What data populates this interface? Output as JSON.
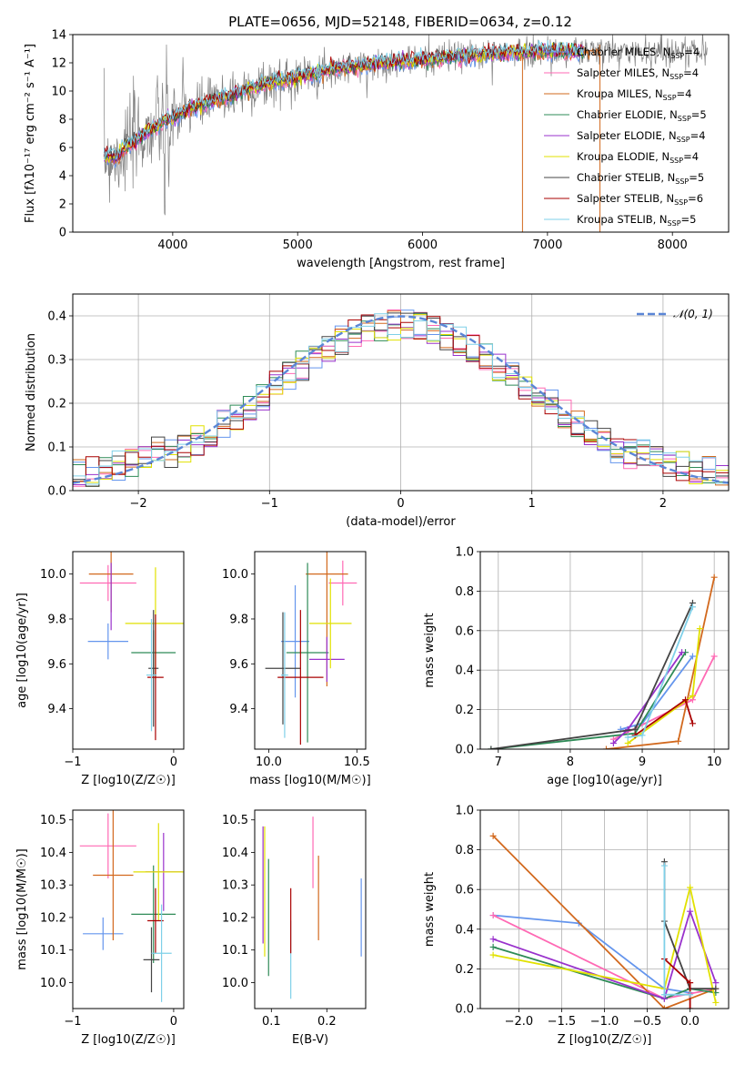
{
  "figure": {
    "title": "PLATE=0656, MJD=52148, FIBERID=0634, z=0.12"
  },
  "legend_labels": [
    "Chabrier MILES, N",
    "Salpeter MILES, N",
    "Kroupa MILES, N",
    "Chabrier ELODIE, N",
    "Salpeter ELODIE, N",
    "Kroupa ELODIE, N",
    "Chabrier STELIB, N",
    "Salpeter STELIB, N",
    "Kroupa STELIB, N"
  ],
  "chart_data": [
    {
      "id": "spectrum",
      "type": "line",
      "xlabel": "wavelength [Angstrom, rest frame]",
      "ylabel": "Flux [fλ10⁻¹⁷ erg cm⁻² s⁻¹ A⁻¹]",
      "xlim": [
        3200,
        8450
      ],
      "ylim": [
        0,
        14
      ],
      "xticks": [
        4000,
        5000,
        6000,
        7000,
        8000
      ],
      "yticks": [
        0,
        2,
        4,
        6,
        8,
        10,
        12,
        14
      ],
      "legend_position": "right",
      "series": [
        {
          "name": "Chabrier MILES",
          "nssp": 4,
          "color": "#6495ed"
        },
        {
          "name": "Salpeter MILES",
          "nssp": 4,
          "color": "#ff69b4"
        },
        {
          "name": "Kroupa MILES",
          "nssp": 4,
          "color": "#d2691e"
        },
        {
          "name": "Chabrier ELODIE",
          "nssp": 5,
          "color": "#2e8b57"
        },
        {
          "name": "Salpeter ELODIE",
          "nssp": 4,
          "color": "#9932cc"
        },
        {
          "name": "Kroupa ELODIE",
          "nssp": 4,
          "color": "#e1e100"
        },
        {
          "name": "Chabrier STELIB",
          "nssp": 5,
          "color": "#444444"
        },
        {
          "name": "Salpeter STELIB",
          "nssp": 6,
          "color": "#aa0000"
        },
        {
          "name": "Kroupa STELIB",
          "nssp": 5,
          "color": "#7fd0e8"
        }
      ],
      "data_color": "#808080",
      "model_points": [
        [
          3450,
          5.4
        ],
        [
          3550,
          5.3
        ],
        [
          3650,
          6.2
        ],
        [
          3750,
          6.8
        ],
        [
          3850,
          7.4
        ],
        [
          3950,
          8.0
        ],
        [
          4050,
          8.3
        ],
        [
          4150,
          8.8
        ],
        [
          4250,
          9.0
        ],
        [
          4350,
          9.4
        ],
        [
          4500,
          9.8
        ],
        [
          4700,
          10.4
        ],
        [
          4900,
          10.8
        ],
        [
          5100,
          11.2
        ],
        [
          5300,
          11.6
        ],
        [
          5500,
          11.8
        ],
        [
          5700,
          12.0
        ],
        [
          5900,
          12.1
        ],
        [
          6100,
          12.3
        ],
        [
          6300,
          12.5
        ],
        [
          6500,
          12.6
        ],
        [
          6700,
          12.7
        ],
        [
          6900,
          12.8
        ],
        [
          7100,
          12.8
        ],
        [
          7300,
          12.8
        ],
        [
          7400,
          12.8
        ]
      ]
    },
    {
      "id": "residuals",
      "type": "histogram",
      "xlabel": "(data-model)/error",
      "ylabel": "Normed distribution",
      "xlim": [
        -2.5,
        2.5
      ],
      "ylim": [
        0,
        0.45
      ],
      "xticks": [
        -2,
        -1,
        0,
        1,
        2
      ],
      "yticks": [
        0.0,
        0.1,
        0.2,
        0.3,
        0.4
      ],
      "grid": true,
      "bins": 50,
      "reference": {
        "label": "𝒩(0, 1)",
        "mean": 0,
        "sigma": 1,
        "color": "#5b86d6"
      },
      "legend_position": "top-right"
    },
    {
      "id": "age_vs_z",
      "type": "errorbar",
      "xlabel": "Z [log10(Z/Z☉)]",
      "ylabel": "age [log10(age/yr)]",
      "xlim": [
        -1.0,
        0.1
      ],
      "ylim": [
        9.22,
        10.1
      ],
      "xticks": [
        -1,
        0
      ],
      "yticks": [
        9.4,
        9.6,
        9.8,
        10.0
      ],
      "points": [
        {
          "x": -0.65,
          "y": 9.7,
          "xerr": 0.2,
          "yerr": 0.08,
          "color": "#6495ed"
        },
        {
          "x": -0.65,
          "y": 9.96,
          "xerr": 0.28,
          "yerr": 0.08,
          "color": "#ff69b4"
        },
        {
          "x": -0.62,
          "y": 10.0,
          "xerr": 0.22,
          "yerr": 0.17,
          "color": "#d2691e"
        },
        {
          "x": -0.2,
          "y": 9.65,
          "xerr": 0.22,
          "yerr": 0.1,
          "color": "#2e8b57"
        },
        {
          "x": -0.62,
          "y": 9.9,
          "xerr": 0.0,
          "yerr": 0.15,
          "color": "#9932cc"
        },
        {
          "x": -0.18,
          "y": 9.78,
          "xerr": 0.3,
          "yerr": 0.25,
          "color": "#e1e100"
        },
        {
          "x": -0.2,
          "y": 9.58,
          "xerr": 0.05,
          "yerr": 0.26,
          "color": "#444444"
        },
        {
          "x": -0.18,
          "y": 9.54,
          "xerr": 0.08,
          "yerr": 0.28,
          "color": "#aa0000"
        },
        {
          "x": -0.22,
          "y": 9.55,
          "xerr": 0.05,
          "yerr": 0.25,
          "color": "#7fd0e8"
        }
      ]
    },
    {
      "id": "age_vs_mass",
      "type": "errorbar",
      "xlabel": "mass [log10(M/M☉)]",
      "xlim": [
        9.92,
        10.55
      ],
      "ylim": [
        9.22,
        10.1
      ],
      "xticks": [
        10.0,
        10.5
      ],
      "yticks": [
        9.4,
        9.6,
        9.8,
        10.0
      ],
      "points": [
        {
          "x": 10.15,
          "y": 9.7,
          "xerr": 0.08,
          "yerr": 0.25,
          "color": "#6495ed"
        },
        {
          "x": 10.42,
          "y": 9.96,
          "xerr": 0.08,
          "yerr": 0.1,
          "color": "#ff69b4"
        },
        {
          "x": 10.33,
          "y": 10.0,
          "xerr": 0.12,
          "yerr": 0.5,
          "color": "#d2691e"
        },
        {
          "x": 10.22,
          "y": 9.65,
          "xerr": 0.12,
          "yerr": 0.4,
          "color": "#2e8b57"
        },
        {
          "x": 10.33,
          "y": 9.62,
          "xerr": 0.1,
          "yerr": 0.1,
          "color": "#9932cc"
        },
        {
          "x": 10.35,
          "y": 9.78,
          "xerr": 0.12,
          "yerr": 0.2,
          "color": "#e1e100"
        },
        {
          "x": 10.08,
          "y": 9.58,
          "xerr": 0.1,
          "yerr": 0.25,
          "color": "#444444"
        },
        {
          "x": 10.18,
          "y": 9.54,
          "xerr": 0.13,
          "yerr": 0.3,
          "color": "#aa0000"
        },
        {
          "x": 10.09,
          "y": 9.55,
          "xerr": 0.02,
          "yerr": 0.28,
          "color": "#7fd0e8"
        }
      ]
    },
    {
      "id": "weight_vs_age",
      "type": "line",
      "xlabel": "age [log10(age/yr)]",
      "ylabel": "mass weight",
      "xlim": [
        6.75,
        10.2
      ],
      "ylim": [
        0,
        1
      ],
      "xticks": [
        7,
        8,
        9,
        10
      ],
      "yticks": [
        0.0,
        0.2,
        0.4,
        0.6,
        0.8,
        1.0
      ],
      "grid": true,
      "series": [
        {
          "color": "#6495ed",
          "points": [
            [
              8.7,
              0.1
            ],
            [
              9.0,
              0.13
            ],
            [
              9.7,
              0.47
            ]
          ]
        },
        {
          "color": "#ff69b4",
          "points": [
            [
              8.6,
              0.05
            ],
            [
              9.7,
              0.25
            ],
            [
              10.0,
              0.47
            ]
          ]
        },
        {
          "color": "#d2691e",
          "points": [
            [
              8.5,
              0.0
            ],
            [
              9.5,
              0.04
            ],
            [
              10.0,
              0.87
            ]
          ]
        },
        {
          "color": "#2e8b57",
          "points": [
            [
              6.9,
              0.0
            ],
            [
              8.9,
              0.08
            ],
            [
              9.6,
              0.49
            ]
          ]
        },
        {
          "color": "#9932cc",
          "points": [
            [
              8.6,
              0.03
            ],
            [
              8.8,
              0.1
            ],
            [
              9.55,
              0.49
            ]
          ]
        },
        {
          "color": "#e1e100",
          "points": [
            [
              8.8,
              0.03
            ],
            [
              9.7,
              0.27
            ],
            [
              9.8,
              0.61
            ]
          ]
        },
        {
          "color": "#444444",
          "points": [
            [
              6.9,
              0.0
            ],
            [
              8.9,
              0.1
            ],
            [
              9.7,
              0.74
            ]
          ]
        },
        {
          "color": "#aa0000",
          "points": [
            [
              8.9,
              0.07
            ],
            [
              9.6,
              0.25
            ],
            [
              9.7,
              0.13
            ]
          ]
        },
        {
          "color": "#7fd0e8",
          "points": [
            [
              8.8,
              0.06
            ],
            [
              9.0,
              0.07
            ],
            [
              9.7,
              0.72
            ]
          ]
        }
      ]
    },
    {
      "id": "mass_vs_z",
      "type": "errorbar",
      "xlabel": "Z [log10(Z/Z☉)]",
      "ylabel": "mass [log10(M/M☉)]",
      "xlim": [
        -1.0,
        0.1
      ],
      "ylim": [
        9.92,
        10.53
      ],
      "xticks": [
        -1,
        0
      ],
      "yticks": [
        10.0,
        10.1,
        10.2,
        10.3,
        10.4,
        10.5
      ],
      "points": [
        {
          "x": -0.7,
          "y": 10.15,
          "xerr": 0.2,
          "yerr": 0.05,
          "color": "#6495ed"
        },
        {
          "x": -0.65,
          "y": 10.42,
          "xerr": 0.28,
          "yerr": 0.1,
          "color": "#ff69b4"
        },
        {
          "x": -0.6,
          "y": 10.33,
          "xerr": 0.2,
          "yerr": 0.2,
          "color": "#d2691e"
        },
        {
          "x": -0.2,
          "y": 10.21,
          "xerr": 0.22,
          "yerr": 0.15,
          "color": "#2e8b57"
        },
        {
          "x": -0.1,
          "y": 10.34,
          "xerr": 0.18,
          "yerr": 0.12,
          "color": "#9932cc"
        },
        {
          "x": -0.15,
          "y": 10.34,
          "xerr": 0.25,
          "yerr": 0.15,
          "color": "#e1e100"
        },
        {
          "x": -0.22,
          "y": 10.07,
          "xerr": 0.08,
          "yerr": 0.1,
          "color": "#444444"
        },
        {
          "x": -0.18,
          "y": 10.19,
          "xerr": 0.08,
          "yerr": 0.1,
          "color": "#aa0000"
        },
        {
          "x": -0.12,
          "y": 10.09,
          "xerr": 0.1,
          "yerr": 0.15,
          "color": "#7fd0e8"
        }
      ]
    },
    {
      "id": "mass_vs_ebv",
      "type": "errorbar",
      "xlabel": "E(B-V)",
      "xlim": [
        0.07,
        0.27
      ],
      "ylim": [
        9.92,
        10.53
      ],
      "xticks": [
        0.1,
        0.2
      ],
      "yticks": [
        10.0,
        10.1,
        10.2,
        10.3,
        10.4,
        10.5
      ],
      "points": [
        {
          "x": 0.085,
          "y": 10.3,
          "xerr": 0.0,
          "yerr": 0.18,
          "color": "#9932cc"
        },
        {
          "x": 0.088,
          "y": 10.28,
          "xerr": 0.0,
          "yerr": 0.2,
          "color": "#e1e100"
        },
        {
          "x": 0.095,
          "y": 10.2,
          "xerr": 0.0,
          "yerr": 0.18,
          "color": "#2e8b57"
        },
        {
          "x": 0.135,
          "y": 10.07,
          "xerr": 0.0,
          "yerr": 0.12,
          "color": "#7fd0e8"
        },
        {
          "x": 0.135,
          "y": 10.19,
          "xerr": 0.0,
          "yerr": 0.1,
          "color": "#aa0000"
        },
        {
          "x": 0.175,
          "y": 10.4,
          "xerr": 0.0,
          "yerr": 0.11,
          "color": "#ff69b4"
        },
        {
          "x": 0.185,
          "y": 10.26,
          "xerr": 0.0,
          "yerr": 0.13,
          "color": "#d2691e"
        },
        {
          "x": 0.262,
          "y": 10.2,
          "xerr": 0.0,
          "yerr": 0.12,
          "color": "#6495ed"
        }
      ]
    },
    {
      "id": "weight_vs_z",
      "type": "line",
      "xlabel": "Z [log10(Z/Z☉)]",
      "ylabel": "mass weight",
      "xlim": [
        -2.45,
        0.45
      ],
      "ylim": [
        0,
        1
      ],
      "xticks": [
        -2.0,
        -1.5,
        -1.0,
        -0.5,
        0.0
      ],
      "yticks": [
        0.0,
        0.2,
        0.4,
        0.6,
        0.8,
        1.0
      ],
      "grid": true,
      "series": [
        {
          "color": "#6495ed",
          "points": [
            [
              -2.3,
              0.47
            ],
            [
              -1.3,
              0.43
            ],
            [
              -0.3,
              0.1
            ],
            [
              0.0,
              0.08
            ]
          ]
        },
        {
          "color": "#ff69b4",
          "points": [
            [
              -2.3,
              0.47
            ],
            [
              -0.3,
              0.05
            ],
            [
              0.3,
              0.1
            ]
          ]
        },
        {
          "color": "#d2691e",
          "points": [
            [
              -2.3,
              0.87
            ],
            [
              -0.3,
              0.0
            ],
            [
              0.3,
              0.1
            ]
          ]
        },
        {
          "color": "#2e8b57",
          "points": [
            [
              -2.3,
              0.31
            ],
            [
              -0.3,
              0.05
            ],
            [
              0.0,
              0.1
            ],
            [
              0.3,
              0.08
            ]
          ]
        },
        {
          "color": "#9932cc",
          "points": [
            [
              -2.3,
              0.35
            ],
            [
              -0.3,
              0.05
            ],
            [
              0.0,
              0.49
            ],
            [
              0.3,
              0.13
            ]
          ]
        },
        {
          "color": "#e1e100",
          "points": [
            [
              -2.3,
              0.27
            ],
            [
              -0.3,
              0.1
            ],
            [
              0.0,
              0.61
            ],
            [
              0.3,
              0.03
            ]
          ]
        },
        {
          "color": "#444444",
          "points": [
            [
              -0.3,
              0.74
            ],
            [
              -0.3,
              0.44
            ],
            [
              0.0,
              0.1
            ],
            [
              0.3,
              0.1
            ]
          ]
        },
        {
          "color": "#aa0000",
          "points": [
            [
              -0.3,
              0.25
            ],
            [
              0.0,
              0.13
            ],
            [
              0.0,
              0.0
            ]
          ]
        },
        {
          "color": "#7fd0e8",
          "points": [
            [
              -0.3,
              0.72
            ],
            [
              -0.3,
              0.07
            ],
            [
              0.0,
              0.07
            ]
          ]
        }
      ]
    }
  ]
}
